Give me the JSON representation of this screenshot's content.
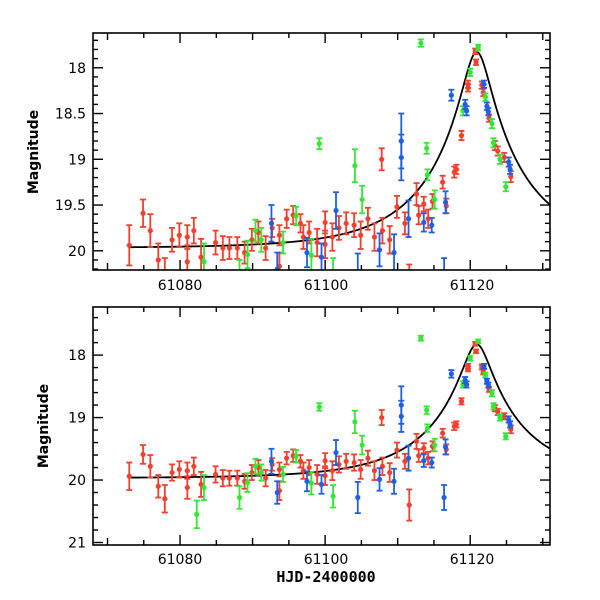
{
  "chart_data": [
    {
      "type": "scatter",
      "panel": "top",
      "xlabel": "",
      "ylabel": "Magnitude",
      "xlim": [
        61068,
        61131
      ],
      "ylim": [
        20.21,
        17.62
      ],
      "y_inverted": true,
      "xticks": [
        61080,
        61100,
        61120
      ],
      "xtick_labels": [
        "61080",
        "61100",
        "61120"
      ],
      "x_minor_step": 5,
      "yticks": [
        18,
        18.5,
        19,
        19.5,
        20
      ],
      "ytick_labels": [
        "18",
        "18.5",
        "19",
        "19.5",
        "20"
      ],
      "y_minor_step": 0.1,
      "grid": false
    },
    {
      "type": "scatter",
      "panel": "bottom",
      "xlabel": "HJD-2400000",
      "ylabel": "Magnitude",
      "xlim": [
        61068,
        61131
      ],
      "ylim": [
        21.04,
        17.23
      ],
      "y_inverted": true,
      "xticks": [
        61080,
        61100,
        61120
      ],
      "xtick_labels": [
        "61080",
        "61100",
        "61120"
      ],
      "x_minor_step": 5,
      "yticks": [
        18,
        19,
        20,
        21
      ],
      "ytick_labels": [
        "18",
        "19",
        "20",
        "21"
      ],
      "y_minor_step": 0.2,
      "grid": false
    }
  ],
  "model": {
    "name": "fit-curve",
    "color": "#000000",
    "baseline_mag": 19.97,
    "t0": 61120.9,
    "u0": 0.14,
    "tE": 13.0,
    "t_start": 61073.0,
    "t_end": 61131
  },
  "series": [
    {
      "name": "red",
      "color": "#f2402f",
      "points": [
        [
          61073.0,
          19.94,
          0.22
        ],
        [
          61074.9,
          19.59,
          0.15
        ],
        [
          61075.9,
          19.78,
          0.18
        ],
        [
          61077.0,
          20.1,
          0.18
        ],
        [
          61077.9,
          20.3,
          0.22
        ],
        [
          61078.9,
          19.88,
          0.13
        ],
        [
          61079.9,
          19.83,
          0.13
        ],
        [
          61081.0,
          19.85,
          0.13
        ],
        [
          61081.0,
          20.12,
          0.18
        ],
        [
          61081.9,
          19.78,
          0.14
        ],
        [
          61082.9,
          20.07,
          0.2
        ],
        [
          61084.9,
          19.91,
          0.13
        ],
        [
          61085.9,
          19.97,
          0.13
        ],
        [
          61086.8,
          19.97,
          0.12
        ],
        [
          61087.9,
          19.97,
          0.12
        ],
        [
          61088.9,
          20.02,
          0.12
        ],
        [
          61089.9,
          19.88,
          0.12
        ],
        [
          61090.8,
          19.8,
          0.12
        ],
        [
          61091.8,
          19.97,
          0.13
        ],
        [
          61092.7,
          19.75,
          0.1
        ],
        [
          61093.7,
          19.83,
          0.11
        ],
        [
          61093.7,
          20.17,
          0.15
        ],
        [
          61094.7,
          19.65,
          0.1
        ],
        [
          61095.6,
          19.61,
          0.1
        ],
        [
          61096.6,
          19.7,
          0.1
        ],
        [
          61097.0,
          19.85,
          0.13
        ],
        [
          61097.8,
          19.8,
          0.12
        ],
        [
          61098.9,
          19.91,
          0.15
        ],
        [
          61100.0,
          19.69,
          0.12
        ],
        [
          61100.0,
          19.93,
          0.15
        ],
        [
          61101.0,
          19.85,
          0.15
        ],
        [
          61101.9,
          19.75,
          0.13
        ],
        [
          61102.9,
          19.7,
          0.12
        ],
        [
          61104.0,
          19.72,
          0.13
        ],
        [
          61104.9,
          19.83,
          0.15
        ],
        [
          61105.9,
          19.65,
          0.12
        ],
        [
          61106.8,
          19.85,
          0.15
        ],
        [
          61107.8,
          19.0,
          0.12
        ],
        [
          61107.9,
          19.78,
          0.14
        ],
        [
          61108.9,
          19.88,
          0.15
        ],
        [
          61109.9,
          19.52,
          0.12
        ],
        [
          61111.0,
          19.7,
          0.12
        ],
        [
          61111.6,
          20.4,
          0.25
        ],
        [
          61112.6,
          19.38,
          0.12
        ],
        [
          61112.9,
          19.61,
          0.1
        ],
        [
          61113.6,
          19.49,
          0.08
        ],
        [
          61114.2,
          19.65,
          0.1
        ],
        [
          61114.8,
          19.46,
          0.08
        ],
        [
          61116.2,
          19.25,
          0.07
        ],
        [
          61116.7,
          19.51,
          0.08
        ],
        [
          61117.8,
          19.14,
          0.06
        ],
        [
          61118.1,
          19.11,
          0.05
        ],
        [
          61118.8,
          18.74,
          0.05
        ],
        [
          61119.7,
          18.22,
          0.04
        ],
        [
          61119.7,
          18.18,
          0.04
        ],
        [
          61120.7,
          17.82,
          0.03
        ],
        [
          61120.8,
          17.94,
          0.03
        ],
        [
          61121.6,
          18.19,
          0.04
        ],
        [
          61121.8,
          18.27,
          0.04
        ],
        [
          61122.6,
          18.55,
          0.04
        ],
        [
          61123.4,
          18.85,
          0.05
        ],
        [
          61123.8,
          18.91,
          0.05
        ],
        [
          61124.7,
          18.98,
          0.05
        ],
        [
          61125.6,
          19.19,
          0.06
        ]
      ]
    },
    {
      "name": "green",
      "color": "#36e636",
      "points": [
        [
          61082.3,
          20.55,
          0.22
        ],
        [
          61083.3,
          20.12,
          0.2
        ],
        [
          61088.2,
          20.28,
          0.18
        ],
        [
          61089.3,
          20.04,
          0.15
        ],
        [
          61090.4,
          19.78,
          0.12
        ],
        [
          61091.2,
          19.88,
          0.13
        ],
        [
          61094.2,
          19.91,
          0.12
        ],
        [
          61096.0,
          19.62,
          0.1
        ],
        [
          61098.1,
          20.05,
          0.18
        ],
        [
          61099.2,
          18.83,
          0.06
        ],
        [
          61101.1,
          20.26,
          0.18
        ],
        [
          61104.1,
          19.07,
          0.18
        ],
        [
          61105.1,
          19.44,
          0.15
        ],
        [
          61113.2,
          17.73,
          0.04
        ],
        [
          61114.0,
          18.88,
          0.06
        ],
        [
          61114.1,
          19.17,
          0.06
        ],
        [
          61115.1,
          19.44,
          0.1
        ],
        [
          61119.0,
          18.47,
          0.05
        ],
        [
          61120.0,
          18.05,
          0.04
        ],
        [
          61121.1,
          17.78,
          0.03
        ],
        [
          61122.1,
          18.32,
          0.04
        ],
        [
          61123.0,
          18.61,
          0.05
        ],
        [
          61123.2,
          18.82,
          0.05
        ],
        [
          61124.1,
          19.0,
          0.05
        ],
        [
          61124.9,
          19.3,
          0.05
        ]
      ]
    },
    {
      "name": "blue",
      "color": "#1f5fe0",
      "points": [
        [
          61092.6,
          19.7,
          0.2
        ],
        [
          61093.4,
          20.2,
          0.18
        ],
        [
          61097.5,
          20.02,
          0.16
        ],
        [
          61099.5,
          20.07,
          0.15
        ],
        [
          61101.5,
          19.56,
          0.2
        ],
        [
          61104.5,
          20.28,
          0.25
        ],
        [
          61107.5,
          19.99,
          0.18
        ],
        [
          61109.5,
          20.02,
          0.2
        ],
        [
          61110.5,
          18.8,
          0.3
        ],
        [
          61110.5,
          18.98,
          0.25
        ],
        [
          61111.5,
          19.65,
          0.2
        ],
        [
          61113.6,
          19.69,
          0.1
        ],
        [
          61114.7,
          19.72,
          0.08
        ],
        [
          61116.4,
          20.28,
          0.2
        ],
        [
          61116.6,
          19.47,
          0.12
        ],
        [
          61117.4,
          18.3,
          0.06
        ],
        [
          61119.3,
          18.4,
          0.05
        ],
        [
          61119.5,
          18.47,
          0.05
        ],
        [
          61121.9,
          18.18,
          0.04
        ],
        [
          61122.3,
          18.42,
          0.04
        ],
        [
          61122.5,
          18.48,
          0.04
        ],
        [
          61125.3,
          19.03,
          0.05
        ],
        [
          61125.5,
          19.11,
          0.05
        ]
      ]
    }
  ]
}
